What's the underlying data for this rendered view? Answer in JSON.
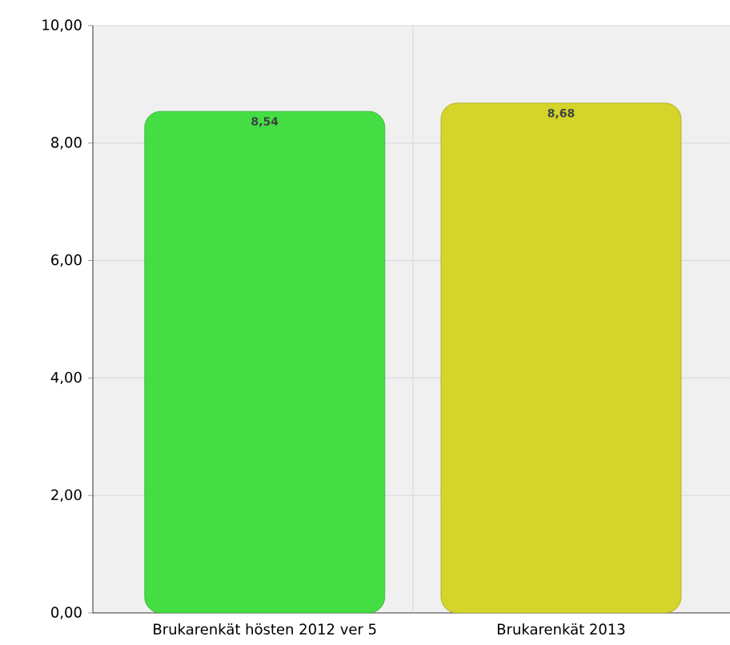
{
  "chart_data": {
    "type": "bar",
    "categories": [
      "Brukarenkät hösten 2012 ver 5",
      "Brukarenkät 2013"
    ],
    "colors": [
      "#44dd44",
      "#d4d42a"
    ],
    "values": [
      8.54,
      8.68
    ],
    "value_labels": [
      "8,54",
      "8,68"
    ],
    "ylim": [
      0,
      10
    ],
    "yticks": [
      {
        "value": 0,
        "label": "0,00"
      },
      {
        "value": 2,
        "label": "2,00"
      },
      {
        "value": 4,
        "label": "4,00"
      },
      {
        "value": 6,
        "label": "6,00"
      },
      {
        "value": 8,
        "label": "8,00"
      },
      {
        "value": 10,
        "label": "10,00"
      }
    ],
    "grid": true
  }
}
